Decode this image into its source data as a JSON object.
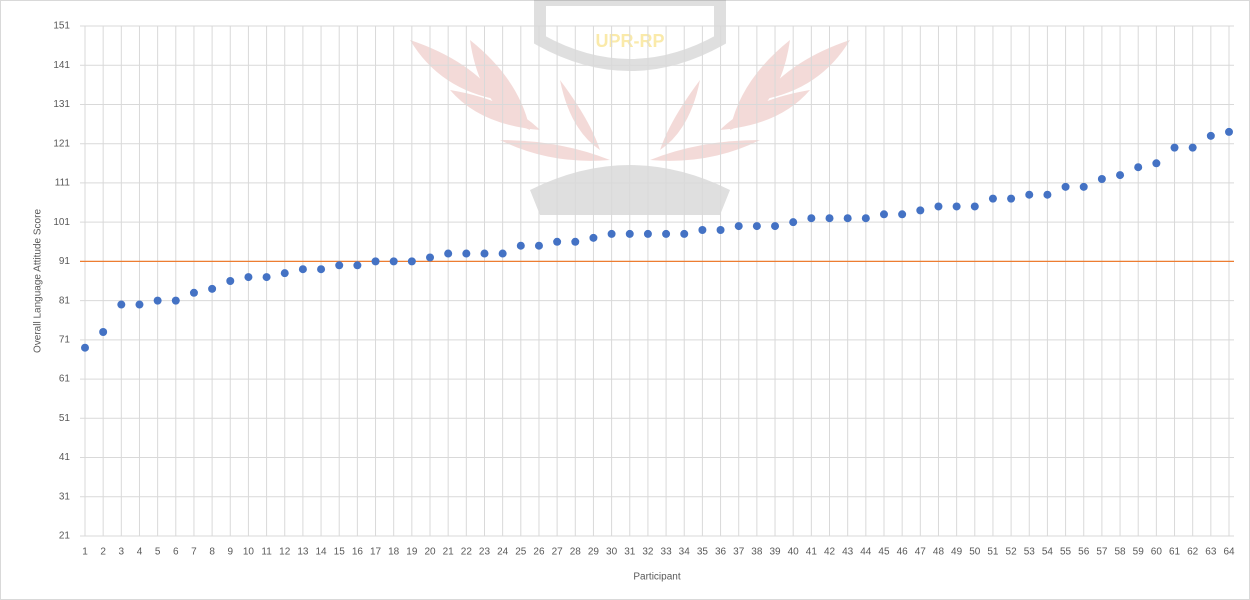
{
  "chart_data": {
    "type": "scatter",
    "watermark": "UPR-RP",
    "x_label": "Participant",
    "y_label": "Overall Language Attitude Score",
    "x": [
      1,
      2,
      3,
      4,
      5,
      6,
      7,
      8,
      9,
      10,
      11,
      12,
      13,
      14,
      15,
      16,
      17,
      18,
      19,
      20,
      21,
      22,
      23,
      24,
      25,
      26,
      27,
      28,
      29,
      30,
      31,
      32,
      33,
      34,
      35,
      36,
      37,
      38,
      39,
      40,
      41,
      42,
      43,
      44,
      45,
      46,
      47,
      48,
      49,
      50,
      51,
      52,
      53,
      54,
      55,
      56,
      57,
      58,
      59,
      60,
      61,
      62,
      63,
      64
    ],
    "series": [
      {
        "color": "#4472c4",
        "values": [
          69,
          73,
          80,
          80,
          81,
          81,
          83,
          84,
          86,
          87,
          87,
          88,
          89,
          89,
          90,
          90,
          91,
          91,
          91,
          92,
          93,
          93,
          93,
          93,
          95,
          95,
          96,
          96,
          97,
          98,
          98,
          98,
          98,
          98,
          99,
          99,
          100,
          100,
          100,
          101,
          102,
          102,
          102,
          102,
          103,
          103,
          104,
          105,
          105,
          105,
          107,
          107,
          108,
          108,
          110,
          110,
          112,
          113,
          115,
          116,
          120,
          120,
          123,
          124
        ]
      }
    ],
    "reference_line": {
      "value": 91,
      "color": "#ed7d31"
    },
    "xlim": [
      1,
      64
    ],
    "xticks": [
      1,
      2,
      3,
      4,
      5,
      6,
      7,
      8,
      9,
      10,
      11,
      12,
      13,
      14,
      15,
      16,
      17,
      18,
      19,
      20,
      21,
      22,
      23,
      24,
      25,
      26,
      27,
      28,
      29,
      30,
      31,
      32,
      33,
      34,
      35,
      36,
      37,
      38,
      39,
      40,
      41,
      42,
      43,
      44,
      45,
      46,
      47,
      48,
      49,
      50,
      51,
      52,
      53,
      54,
      55,
      56,
      57,
      58,
      59,
      60,
      61,
      62,
      63,
      64
    ],
    "ylim": [
      21,
      151
    ],
    "yticks": [
      21,
      31,
      41,
      51,
      61,
      71,
      81,
      91,
      101,
      111,
      121,
      131,
      141,
      151
    ],
    "grid": true
  }
}
